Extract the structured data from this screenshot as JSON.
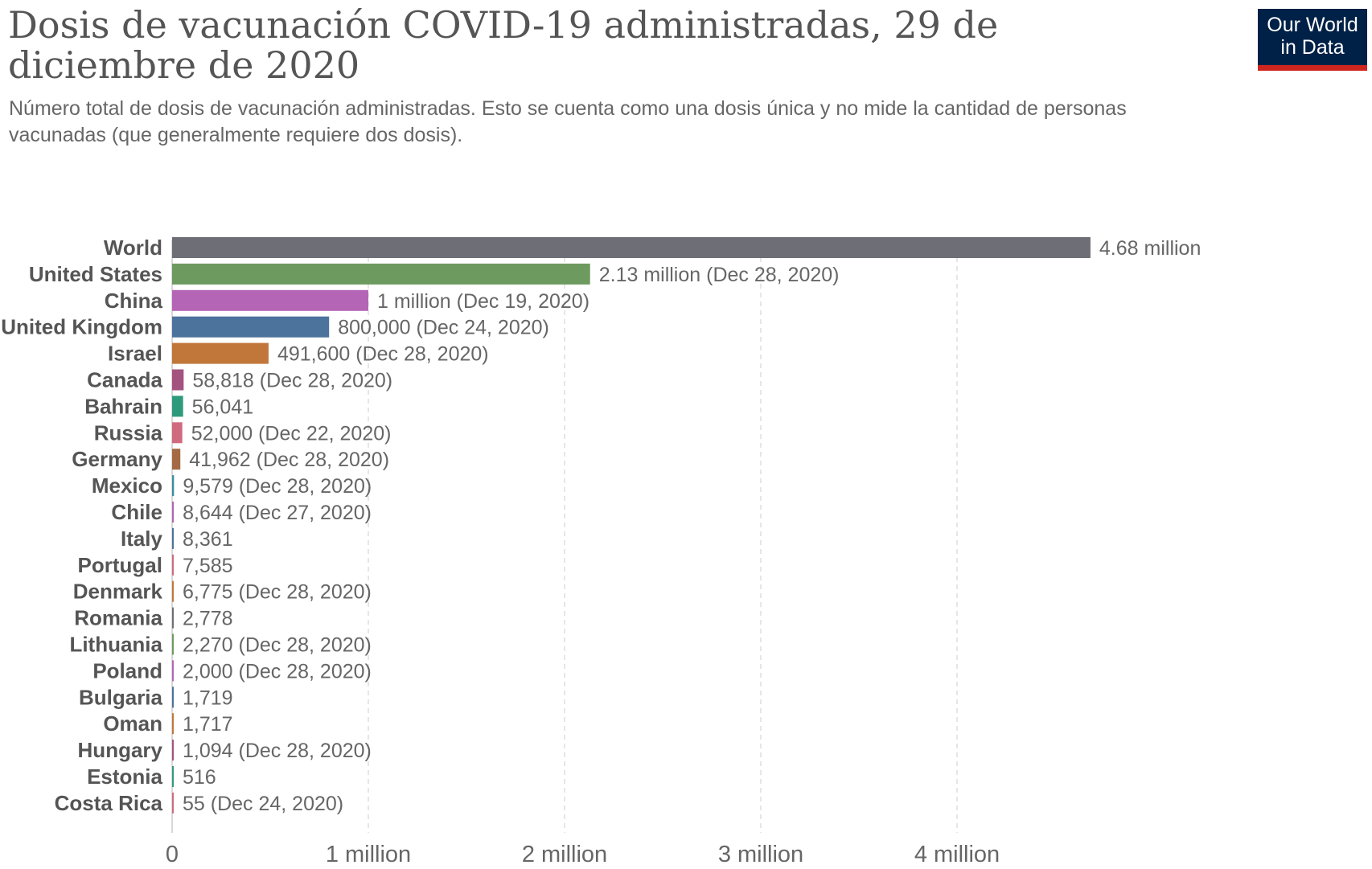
{
  "header": {
    "title": "Dosis de vacunación COVID-19 administradas, 29 de diciembre de 2020",
    "subtitle": "Número total de dosis de vacunación administradas. Esto se cuenta como una dosis única y no mide la cantidad de personas vacunadas (que generalmente requiere dos dosis).",
    "logo_line1": "Our World",
    "logo_line2": "in Data"
  },
  "colors": {
    "logo_bg": "#002147",
    "logo_accent": "#ce261e",
    "grid": "#dddddd"
  },
  "chart_data": {
    "type": "bar",
    "orientation": "horizontal",
    "title": "Dosis de vacunación COVID-19 administradas, 29 de diciembre de 2020",
    "subtitle": "Número total de dosis de vacunación administradas. Esto se cuenta como una dosis única y no mide la cantidad de personas vacunadas (que generalmente requiere dos dosis).",
    "xlim": [
      0,
      4800000
    ],
    "grid": "vertical dashed",
    "x_ticks": [
      {
        "value": 0,
        "label": "0"
      },
      {
        "value": 1000000,
        "label": "1 million"
      },
      {
        "value": 2000000,
        "label": "2 million"
      },
      {
        "value": 3000000,
        "label": "3 million"
      },
      {
        "value": 4000000,
        "label": "4 million"
      }
    ],
    "bars": [
      {
        "category": "World",
        "value": 4680000,
        "label": "4.68 million",
        "color": "#6e6e76"
      },
      {
        "category": "United States",
        "value": 2130000,
        "label": "2.13 million (Dec 28, 2020)",
        "color": "#6d9a5f"
      },
      {
        "category": "China",
        "value": 1000000,
        "label": "1 million (Dec 19, 2020)",
        "color": "#b565b5"
      },
      {
        "category": "United Kingdom",
        "value": 800000,
        "label": "800,000 (Dec 24, 2020)",
        "color": "#4c739c"
      },
      {
        "category": "Israel",
        "value": 491600,
        "label": "491,600 (Dec 28, 2020)",
        "color": "#c1773a"
      },
      {
        "category": "Canada",
        "value": 58818,
        "label": "58,818 (Dec 28, 2020)",
        "color": "#a4537e"
      },
      {
        "category": "Bahrain",
        "value": 56041,
        "label": "56,041",
        "color": "#2e9a7c"
      },
      {
        "category": "Russia",
        "value": 52000,
        "label": "52,000 (Dec 22, 2020)",
        "color": "#d06b7f"
      },
      {
        "category": "Germany",
        "value": 41962,
        "label": "41,962 (Dec 28, 2020)",
        "color": "#a36a43"
      },
      {
        "category": "Mexico",
        "value": 9579,
        "label": "9,579 (Dec 28, 2020)",
        "color": "#3a8fa0"
      },
      {
        "category": "Chile",
        "value": 8644,
        "label": "8,644 (Dec 27, 2020)",
        "color": "#b565b5"
      },
      {
        "category": "Italy",
        "value": 8361,
        "label": "8,361",
        "color": "#4c739c"
      },
      {
        "category": "Portugal",
        "value": 7585,
        "label": "7,585",
        "color": "#d06b7f"
      },
      {
        "category": "Denmark",
        "value": 6775,
        "label": "6,775 (Dec 28, 2020)",
        "color": "#c1773a"
      },
      {
        "category": "Romania",
        "value": 2778,
        "label": "2,778",
        "color": "#6e6e76"
      },
      {
        "category": "Lithuania",
        "value": 2270,
        "label": "2,270 (Dec 28, 2020)",
        "color": "#6d9a5f"
      },
      {
        "category": "Poland",
        "value": 2000,
        "label": "2,000 (Dec 28, 2020)",
        "color": "#b565b5"
      },
      {
        "category": "Bulgaria",
        "value": 1719,
        "label": "1,719",
        "color": "#4c739c"
      },
      {
        "category": "Oman",
        "value": 1717,
        "label": "1,717",
        "color": "#c1773a"
      },
      {
        "category": "Hungary",
        "value": 1094,
        "label": "1,094 (Dec 28, 2020)",
        "color": "#a4537e"
      },
      {
        "category": "Estonia",
        "value": 516,
        "label": "516",
        "color": "#2e9a7c"
      },
      {
        "category": "Costa Rica",
        "value": 55,
        "label": "55 (Dec 24, 2020)",
        "color": "#d06b7f"
      }
    ]
  }
}
